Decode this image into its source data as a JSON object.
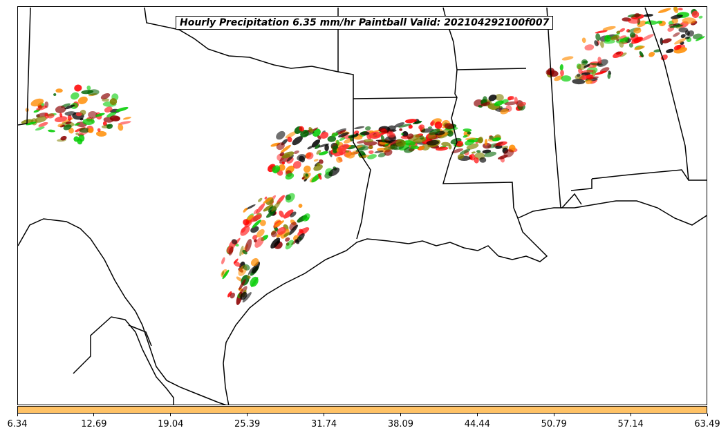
{
  "title": "Hourly Precipitation 6.35 mm/hr Paintball Valid: 202104292100f007",
  "colorbar": {
    "color": "#ffc266",
    "ticks": [
      "6.34",
      "12.69",
      "19.04",
      "25.39",
      "31.74",
      "38.09",
      "44.44",
      "50.79",
      "57.14",
      "63.49"
    ]
  },
  "member_colors": [
    "#ff0000",
    "#ff8c00",
    "#8b0000",
    "#00cc00",
    "#006400",
    "#808000",
    "#000000",
    "#ff3333"
  ],
  "map": {
    "region": "Texas and US Gulf Coast",
    "layers": [
      "state-borders",
      "coastline",
      "mexico-border",
      "precipitation-paintball"
    ]
  }
}
